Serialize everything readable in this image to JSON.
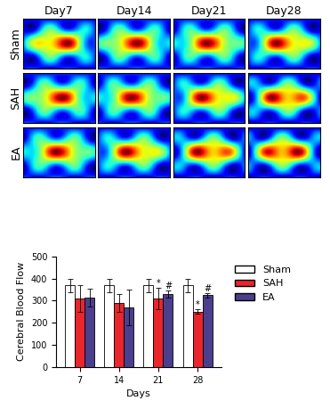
{
  "figure_panels": {
    "column_labels": [
      "Day7",
      "Day14",
      "Day21",
      "Day28"
    ],
    "row_labels": [
      "Sham",
      "SAH",
      "EA"
    ]
  },
  "chart_data": {
    "type": "bar",
    "x_label": "Days",
    "y_label": "Cerebral Blood Flow",
    "categories": [
      "7",
      "14",
      "21",
      "28"
    ],
    "series": [
      {
        "name": "Sham",
        "color": "#ffffff",
        "values": [
          370,
          370,
          370,
          370
        ],
        "errors": [
          30,
          30,
          30,
          30
        ]
      },
      {
        "name": "SAH",
        "color": "#e8262b",
        "values": [
          310,
          290,
          310,
          250
        ],
        "errors": [
          60,
          40,
          50,
          10
        ]
      },
      {
        "name": "EA",
        "color": "#4b3e8c",
        "values": [
          315,
          270,
          330,
          325
        ],
        "errors": [
          40,
          80,
          15,
          10
        ]
      }
    ],
    "annotations": [
      {
        "text": "*",
        "series": "SAH",
        "category": "21"
      },
      {
        "text": "#",
        "series": "EA",
        "category": "21"
      },
      {
        "text": "*",
        "series": "SAH",
        "category": "28"
      },
      {
        "text": "#",
        "series": "EA",
        "category": "28"
      }
    ],
    "ylim": [
      0,
      500
    ],
    "yticks": [
      0,
      100,
      200,
      300,
      400,
      500
    ],
    "legend": "right",
    "grid": false
  }
}
